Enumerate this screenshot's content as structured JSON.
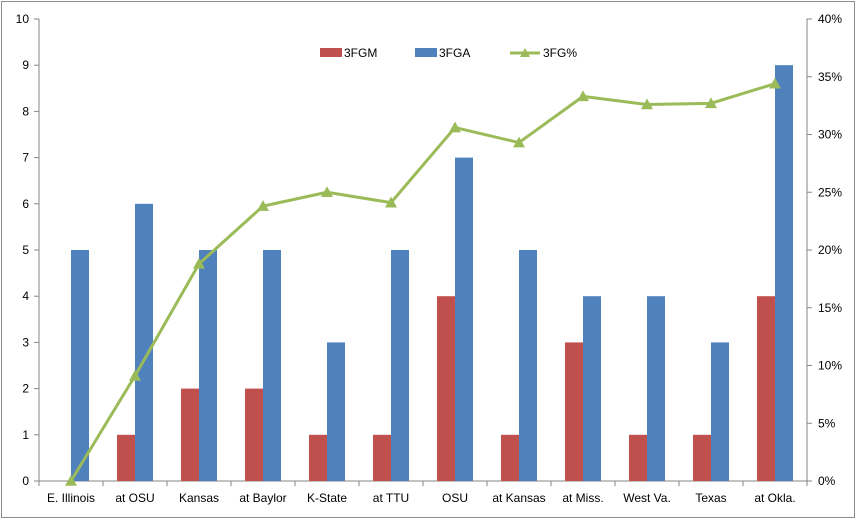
{
  "chart_data": {
    "type": "bar",
    "categories": [
      "E. Illinois",
      "at OSU",
      "Kansas",
      "at Baylor",
      "K-State",
      "at TTU",
      "OSU",
      "at Kansas",
      "at Miss.",
      "West Va.",
      "Texas",
      "at Okla."
    ],
    "series": [
      {
        "name": "3FGM",
        "type": "bar",
        "axis": "left",
        "color": "#c0504d",
        "values": [
          0,
          1,
          2,
          2,
          1,
          1,
          4,
          1,
          3,
          1,
          1,
          4
        ]
      },
      {
        "name": "3FGA",
        "type": "bar",
        "axis": "left",
        "color": "#4f81bd",
        "values": [
          5,
          6,
          5,
          5,
          3,
          5,
          7,
          5,
          4,
          4,
          3,
          9
        ]
      },
      {
        "name": "3FG%",
        "type": "line",
        "axis": "right",
        "color": "#9bbb59",
        "values": [
          0.0,
          9.1,
          18.8,
          23.8,
          25.0,
          24.1,
          30.6,
          29.3,
          33.3,
          32.6,
          32.7,
          34.4
        ]
      }
    ],
    "y_left": {
      "min": 0,
      "max": 10,
      "step": 1,
      "ticks": [
        "0",
        "1",
        "2",
        "3",
        "4",
        "5",
        "6",
        "7",
        "8",
        "9",
        "10"
      ]
    },
    "y_right": {
      "min": 0,
      "max": 40,
      "step": 5,
      "ticks": [
        "0%",
        "5%",
        "10%",
        "15%",
        "20%",
        "25%",
        "30%",
        "35%",
        "40%"
      ]
    },
    "grid": false,
    "legend_position": "top-center",
    "title": "",
    "xlabel": "",
    "ylabel": ""
  }
}
